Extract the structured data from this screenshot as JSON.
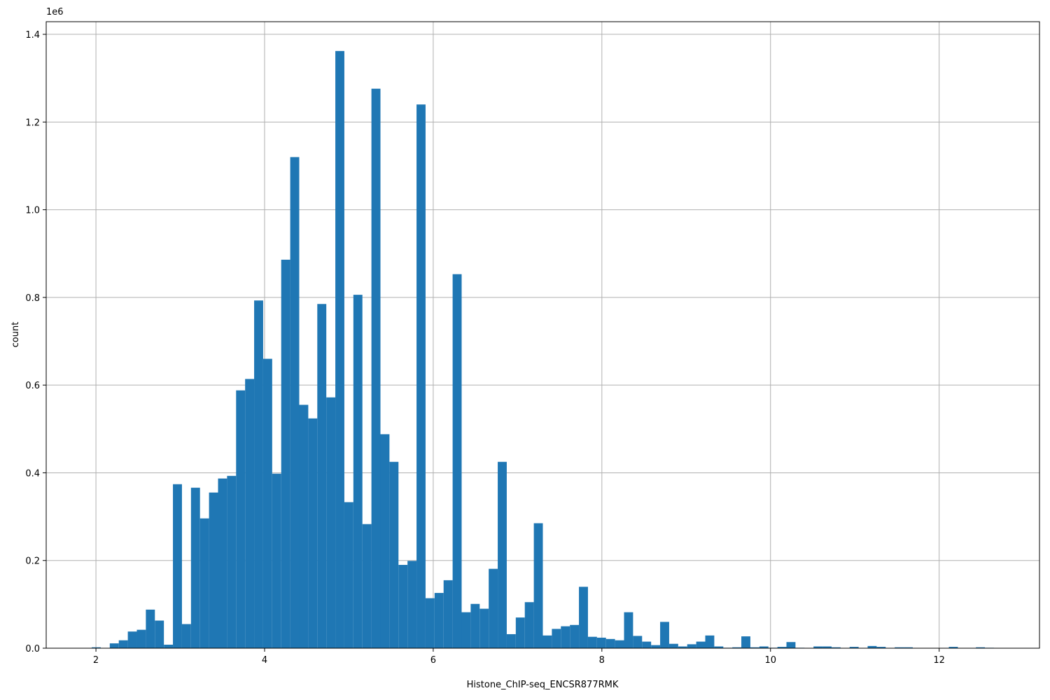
{
  "chart_data": {
    "type": "histogram",
    "x_label": "Histone_ChIP-seq_ENCSR877RMK",
    "y_label": "count",
    "y_offset_label": "1e6",
    "color": "#1f77b4",
    "grid": true,
    "bins": [
      1.95,
      2.057,
      2.164,
      2.271,
      2.378,
      2.485,
      2.592,
      2.699,
      2.806,
      2.913,
      3.02,
      3.127,
      3.234,
      3.341,
      3.448,
      3.555,
      3.662,
      3.769,
      3.876,
      3.983,
      4.09,
      4.197,
      4.304,
      4.411,
      4.518,
      4.625,
      4.732,
      4.839,
      4.946,
      5.053,
      5.16,
      5.267,
      5.374,
      5.481,
      5.588,
      5.695,
      5.802,
      5.909,
      6.016,
      6.123,
      6.23,
      6.337,
      6.444,
      6.551,
      6.658,
      6.765,
      6.872,
      6.979,
      7.086,
      7.193,
      7.3,
      7.407,
      7.514,
      7.621,
      7.728,
      7.835,
      7.942,
      8.049,
      8.156,
      8.263,
      8.37,
      8.477,
      8.584,
      8.691,
      8.798,
      8.905,
      9.012,
      9.119,
      9.226,
      9.333,
      9.44,
      9.547,
      9.654,
      9.761,
      9.868,
      9.975,
      10.082,
      10.189,
      10.296,
      10.403,
      10.51,
      10.617,
      10.724,
      10.831,
      10.938,
      11.045,
      11.152,
      11.259,
      11.366,
      11.473,
      11.58,
      11.687,
      11.794,
      11.901,
      12.008,
      12.115,
      12.222,
      12.329,
      12.436,
      12.543,
      12.65
    ],
    "values": [
      2000,
      0,
      11000,
      18000,
      38000,
      42000,
      88000,
      63000,
      8000,
      374000,
      55000,
      366000,
      296000,
      355000,
      387000,
      393000,
      588000,
      614000,
      793000,
      660000,
      398000,
      886000,
      1120000,
      555000,
      524000,
      785000,
      572000,
      1362000,
      333000,
      806000,
      283000,
      1276000,
      488000,
      425000,
      190000,
      199000,
      1240000,
      114000,
      126000,
      155000,
      853000,
      82000,
      101000,
      90000,
      181000,
      425000,
      32000,
      70000,
      105000,
      285000,
      29000,
      44000,
      50000,
      53000,
      140000,
      26000,
      24000,
      21000,
      18000,
      82000,
      28000,
      15000,
      7000,
      60000,
      10000,
      4000,
      9000,
      15000,
      29000,
      4000,
      1000,
      2000,
      27000,
      2000,
      4000,
      1000,
      3000,
      14000,
      1000,
      0,
      4000,
      4000,
      2000,
      0,
      3000,
      0,
      5000,
      3000,
      0,
      2000,
      2000,
      0,
      0,
      0,
      0,
      3000,
      0,
      0,
      2000,
      1000
    ],
    "xlim": [
      1.41,
      13.19
    ],
    "xticks": [
      2,
      4,
      6,
      8,
      10,
      12
    ],
    "ylim": [
      0,
      1428800
    ],
    "yticks": [
      {
        "value": 0,
        "label": "0.0"
      },
      {
        "value": 200000,
        "label": "0.2"
      },
      {
        "value": 400000,
        "label": "0.4"
      },
      {
        "value": 600000,
        "label": "0.6"
      },
      {
        "value": 800000,
        "label": "0.8"
      },
      {
        "value": 1000000,
        "label": "1.0"
      },
      {
        "value": 1200000,
        "label": "1.2"
      },
      {
        "value": 1400000,
        "label": "1.4"
      }
    ]
  }
}
